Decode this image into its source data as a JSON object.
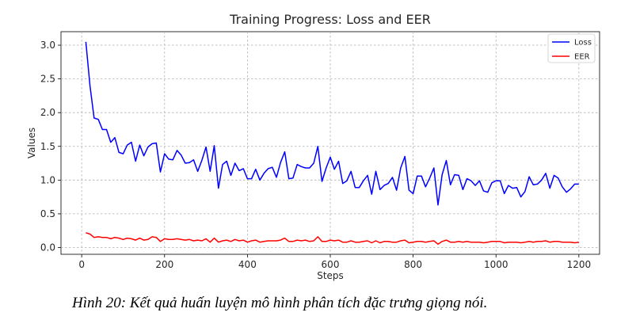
{
  "caption": "Hình 20: Kết quả huấn luyện mô hình phân tích đặc trưng giọng nói.",
  "chart_data": {
    "type": "line",
    "title": "Training Progress: Loss and EER",
    "xlabel": "Steps",
    "ylabel": "Values",
    "xlim": [
      -50,
      1250
    ],
    "ylim": [
      -0.1,
      3.2
    ],
    "xticks": [
      "0",
      "200",
      "400",
      "600",
      "800",
      "1000",
      "1200"
    ],
    "yticks": [
      "0.0",
      "0.5",
      "1.0",
      "1.5",
      "2.0",
      "2.5",
      "3.0"
    ],
    "grid": true,
    "legend_position": "top-right",
    "x": [
      10,
      20,
      30,
      40,
      50,
      60,
      70,
      80,
      90,
      100,
      110,
      120,
      130,
      140,
      150,
      160,
      170,
      180,
      190,
      200,
      210,
      220,
      230,
      240,
      250,
      260,
      270,
      280,
      290,
      300,
      310,
      320,
      330,
      340,
      350,
      360,
      370,
      380,
      390,
      400,
      410,
      420,
      430,
      440,
      450,
      460,
      470,
      480,
      490,
      500,
      510,
      520,
      530,
      540,
      550,
      560,
      570,
      580,
      590,
      600,
      610,
      620,
      630,
      640,
      650,
      660,
      670,
      680,
      690,
      700,
      710,
      720,
      730,
      740,
      750,
      760,
      770,
      780,
      790,
      800,
      810,
      820,
      830,
      840,
      850,
      860,
      870,
      880,
      890,
      900,
      910,
      920,
      930,
      940,
      950,
      960,
      970,
      980,
      990,
      1000,
      1010,
      1020,
      1030,
      1040,
      1050,
      1060,
      1070,
      1080,
      1090,
      1100,
      1110,
      1120,
      1130,
      1140,
      1150,
      1160,
      1170,
      1180,
      1190,
      1200
    ],
    "series": [
      {
        "name": "Loss",
        "color": "#0000ff",
        "values": [
          3.05,
          2.4,
          1.92,
          1.9,
          1.75,
          1.75,
          1.56,
          1.63,
          1.41,
          1.39,
          1.52,
          1.56,
          1.28,
          1.52,
          1.36,
          1.49,
          1.54,
          1.55,
          1.12,
          1.39,
          1.31,
          1.3,
          1.44,
          1.37,
          1.25,
          1.26,
          1.3,
          1.13,
          1.29,
          1.49,
          1.13,
          1.51,
          0.88,
          1.23,
          1.28,
          1.07,
          1.25,
          1.14,
          1.17,
          1.02,
          1.02,
          1.16,
          1.0,
          1.1,
          1.17,
          1.19,
          1.04,
          1.26,
          1.42,
          1.02,
          1.03,
          1.23,
          1.2,
          1.18,
          1.18,
          1.25,
          1.5,
          0.98,
          1.18,
          1.34,
          1.16,
          1.28,
          0.95,
          0.99,
          1.13,
          0.89,
          0.89,
          0.99,
          1.07,
          0.79,
          1.13,
          0.86,
          0.92,
          0.95,
          1.04,
          0.85,
          1.18,
          1.35,
          0.85,
          0.8,
          1.06,
          1.06,
          0.9,
          1.03,
          1.18,
          0.63,
          1.08,
          1.29,
          0.93,
          1.08,
          1.07,
          0.86,
          1.02,
          0.99,
          0.92,
          0.99,
          0.84,
          0.82,
          0.96,
          0.99,
          0.99,
          0.8,
          0.92,
          0.88,
          0.89,
          0.75,
          0.83,
          1.05,
          0.93,
          0.94,
          1.0,
          1.1,
          0.88,
          1.07,
          1.03,
          0.9,
          0.82,
          0.87,
          0.94,
          0.94
        ]
      },
      {
        "name": "EER",
        "color": "#ff0000",
        "values": [
          0.22,
          0.2,
          0.15,
          0.16,
          0.15,
          0.15,
          0.13,
          0.15,
          0.14,
          0.12,
          0.14,
          0.13,
          0.11,
          0.14,
          0.11,
          0.12,
          0.16,
          0.15,
          0.09,
          0.13,
          0.12,
          0.12,
          0.13,
          0.12,
          0.11,
          0.12,
          0.1,
          0.11,
          0.1,
          0.13,
          0.08,
          0.14,
          0.08,
          0.1,
          0.11,
          0.09,
          0.12,
          0.1,
          0.11,
          0.08,
          0.1,
          0.11,
          0.08,
          0.09,
          0.1,
          0.1,
          0.1,
          0.11,
          0.14,
          0.09,
          0.09,
          0.11,
          0.1,
          0.11,
          0.09,
          0.1,
          0.16,
          0.09,
          0.09,
          0.11,
          0.1,
          0.11,
          0.08,
          0.08,
          0.1,
          0.08,
          0.08,
          0.09,
          0.1,
          0.07,
          0.1,
          0.07,
          0.09,
          0.09,
          0.08,
          0.08,
          0.1,
          0.11,
          0.07,
          0.08,
          0.09,
          0.09,
          0.08,
          0.09,
          0.1,
          0.05,
          0.09,
          0.11,
          0.08,
          0.08,
          0.09,
          0.08,
          0.09,
          0.08,
          0.08,
          0.08,
          0.07,
          0.08,
          0.09,
          0.09,
          0.09,
          0.07,
          0.08,
          0.08,
          0.08,
          0.07,
          0.08,
          0.09,
          0.08,
          0.09,
          0.09,
          0.1,
          0.08,
          0.09,
          0.09,
          0.08,
          0.08,
          0.08,
          0.07,
          0.08
        ]
      }
    ]
  }
}
